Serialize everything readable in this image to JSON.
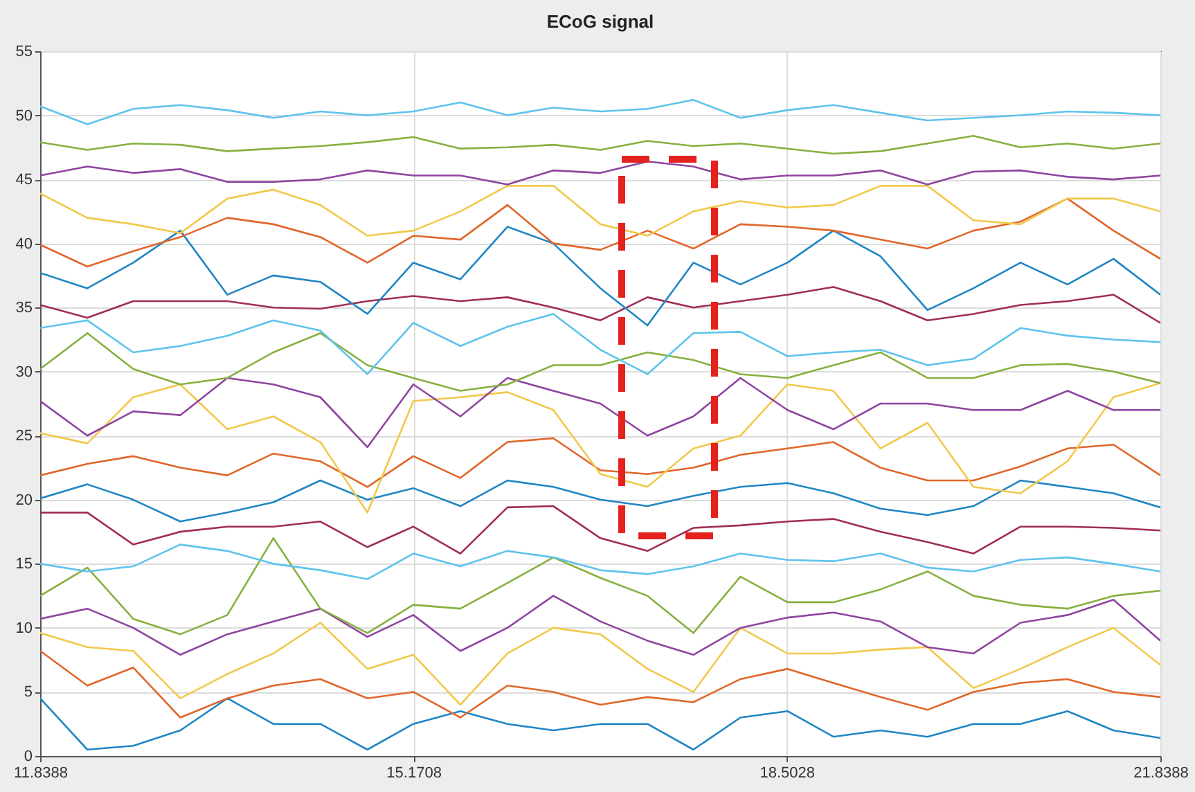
{
  "chart_data": {
    "type": "line",
    "title": "ECoG signal",
    "x": [
      11.8388,
      12.26,
      12.67,
      13.09,
      13.51,
      13.92,
      14.34,
      14.76,
      15.17,
      15.59,
      16.01,
      16.42,
      16.84,
      17.26,
      17.67,
      18.09,
      18.51,
      18.92,
      19.34,
      19.76,
      20.17,
      20.59,
      21.01,
      21.42,
      21.8388
    ],
    "xlim": [
      11.8388,
      21.8388
    ],
    "xticks": [
      11.8388,
      15.1708,
      18.5028,
      21.8388
    ],
    "ylim": [
      0,
      55
    ],
    "yticks": [
      0,
      5,
      10,
      15,
      20,
      25,
      30,
      35,
      40,
      45,
      50,
      55
    ],
    "grid": true,
    "legend": false,
    "series": [
      {
        "color": "#1f86c4",
        "values": [
          4.5,
          0.5,
          0.8,
          2.0,
          4.5,
          2.5,
          2.5,
          0.5,
          2.5,
          3.5,
          2.5,
          2.0,
          2.5,
          2.5,
          0.5,
          3.0,
          3.5,
          1.5,
          2.0,
          1.5,
          2.5,
          2.5,
          3.5,
          2.0,
          1.4
        ]
      },
      {
        "color": "#e0662a",
        "values": [
          8.2,
          5.5,
          6.9,
          3.0,
          4.5,
          5.5,
          6.0,
          4.5,
          5.0,
          3.0,
          5.5,
          5.0,
          4.0,
          4.6,
          4.2,
          6.0,
          6.8,
          5.7,
          4.6,
          3.6,
          5.0,
          5.7,
          6.0,
          5.0,
          4.6
        ]
      },
      {
        "color": "#f2c84b",
        "values": [
          9.6,
          8.5,
          8.2,
          4.5,
          6.4,
          8.0,
          10.4,
          6.8,
          7.9,
          4.0,
          8.0,
          10.0,
          9.5,
          6.8,
          5.0,
          10.0,
          8.0,
          8.0,
          8.3,
          8.5,
          5.3,
          6.8,
          8.5,
          10.0,
          7.1
        ]
      },
      {
        "color": "#8e44a0",
        "values": [
          10.7,
          11.5,
          10.0,
          7.9,
          9.5,
          10.5,
          11.5,
          9.3,
          11.0,
          8.2,
          10.0,
          12.5,
          10.5,
          9.0,
          7.9,
          10.0,
          10.8,
          11.2,
          10.5,
          8.5,
          8.0,
          10.4,
          11.0,
          12.2,
          9.0
        ]
      },
      {
        "color": "#86b03e",
        "values": [
          12.5,
          14.7,
          10.7,
          9.5,
          11.0,
          17.0,
          11.5,
          9.6,
          11.8,
          11.5,
          13.5,
          15.5,
          13.9,
          12.5,
          9.6,
          14.0,
          12.0,
          12.0,
          13.0,
          14.4,
          12.5,
          11.8,
          11.5,
          12.5,
          12.9
        ]
      },
      {
        "color": "#5ec3ec",
        "values": [
          15.0,
          14.4,
          14.8,
          16.5,
          16.0,
          15.0,
          14.5,
          13.8,
          15.8,
          14.8,
          16.0,
          15.5,
          14.5,
          14.2,
          14.8,
          15.8,
          15.3,
          15.2,
          15.8,
          14.7,
          14.4,
          15.3,
          15.5,
          15.0,
          14.4
        ]
      },
      {
        "color": "#a02d52",
        "values": [
          19.0,
          19.0,
          16.5,
          17.5,
          17.9,
          17.9,
          18.3,
          16.3,
          17.9,
          15.8,
          19.4,
          19.5,
          17.0,
          16.0,
          17.8,
          18.0,
          18.3,
          18.5,
          17.5,
          16.7,
          15.8,
          17.9,
          17.9,
          17.8,
          17.6
        ]
      },
      {
        "color": "#1f86c4",
        "values": [
          20.1,
          21.2,
          20.0,
          18.3,
          19.0,
          19.8,
          21.5,
          20.0,
          20.9,
          19.5,
          21.5,
          21.0,
          20.0,
          19.5,
          20.3,
          21.0,
          21.3,
          20.5,
          19.3,
          18.8,
          19.5,
          21.5,
          21.0,
          20.5,
          19.4
        ]
      },
      {
        "color": "#e0662a",
        "values": [
          21.9,
          22.8,
          23.4,
          22.5,
          21.9,
          23.6,
          23.0,
          21.0,
          23.4,
          21.7,
          24.5,
          24.8,
          22.3,
          22.0,
          22.5,
          23.5,
          24.0,
          24.5,
          22.5,
          21.5,
          21.5,
          22.6,
          24.0,
          24.3,
          21.9
        ]
      },
      {
        "color": "#f2c84b",
        "values": [
          25.2,
          24.4,
          28.0,
          29.0,
          25.5,
          26.5,
          24.5,
          19.0,
          27.7,
          28.0,
          28.4,
          27.0,
          22.0,
          21.0,
          24.0,
          25.0,
          29.0,
          28.5,
          24.0,
          26.0,
          21.0,
          20.5,
          23.0,
          28.0,
          29.1
        ]
      },
      {
        "color": "#8e44a0",
        "values": [
          27.7,
          25.0,
          26.9,
          26.6,
          29.5,
          29.0,
          28.0,
          24.1,
          29.0,
          26.5,
          29.5,
          28.5,
          27.5,
          25.0,
          26.5,
          29.5,
          27.0,
          25.5,
          27.5,
          27.5,
          27.0,
          27.0,
          28.5,
          27.0,
          27.0
        ]
      },
      {
        "color": "#86b03e",
        "values": [
          30.2,
          33.0,
          30.2,
          29.0,
          29.5,
          31.5,
          33.0,
          30.5,
          29.5,
          28.5,
          29.0,
          30.5,
          30.5,
          31.5,
          30.9,
          29.8,
          29.5,
          30.5,
          31.5,
          29.5,
          29.5,
          30.5,
          30.6,
          30.0,
          29.1
        ]
      },
      {
        "color": "#5ec3ec",
        "values": [
          33.4,
          34.0,
          31.5,
          32.0,
          32.8,
          34.0,
          33.2,
          29.8,
          33.8,
          32.0,
          33.5,
          34.5,
          31.7,
          29.8,
          33.0,
          33.1,
          31.2,
          31.5,
          31.7,
          30.5,
          31.0,
          33.4,
          32.8,
          32.5,
          32.3
        ]
      },
      {
        "color": "#a02d52",
        "values": [
          35.2,
          34.2,
          35.5,
          35.5,
          35.5,
          35.0,
          34.9,
          35.5,
          35.9,
          35.5,
          35.8,
          35.0,
          34.0,
          35.8,
          35.0,
          35.5,
          36.0,
          36.6,
          35.5,
          34.0,
          34.5,
          35.2,
          35.5,
          36.0,
          33.8
        ]
      },
      {
        "color": "#1f86c4",
        "values": [
          37.7,
          36.5,
          38.5,
          41.0,
          36.0,
          37.5,
          37.0,
          34.5,
          38.5,
          37.2,
          41.3,
          40.0,
          36.5,
          33.6,
          38.5,
          36.8,
          38.5,
          41.0,
          39.0,
          34.8,
          36.5,
          38.5,
          36.8,
          38.8,
          36.0
        ]
      },
      {
        "color": "#e0662a",
        "values": [
          39.9,
          38.2,
          39.4,
          40.5,
          42.0,
          41.5,
          40.5,
          38.5,
          40.6,
          40.3,
          43.0,
          40.0,
          39.5,
          41.0,
          39.6,
          41.5,
          41.3,
          41.0,
          40.3,
          39.6,
          41.0,
          41.7,
          43.5,
          41.0,
          38.8
        ]
      },
      {
        "color": "#f2c84b",
        "values": [
          43.9,
          42.0,
          41.5,
          40.8,
          43.5,
          44.2,
          43.0,
          40.6,
          41.0,
          42.5,
          44.5,
          44.5,
          41.5,
          40.6,
          42.5,
          43.3,
          42.8,
          43.0,
          44.5,
          44.5,
          41.8,
          41.5,
          43.5,
          43.5,
          42.5
        ]
      },
      {
        "color": "#8e44a0",
        "values": [
          45.3,
          46.0,
          45.5,
          45.8,
          44.8,
          44.8,
          45.0,
          45.7,
          45.3,
          45.3,
          44.6,
          45.7,
          45.5,
          46.4,
          46.0,
          45.0,
          45.3,
          45.3,
          45.7,
          44.6,
          45.6,
          45.7,
          45.2,
          45.0,
          45.3
        ]
      },
      {
        "color": "#86b03e",
        "values": [
          47.9,
          47.3,
          47.8,
          47.7,
          47.2,
          47.4,
          47.6,
          47.9,
          48.3,
          47.4,
          47.5,
          47.7,
          47.3,
          48.0,
          47.6,
          47.8,
          47.4,
          47.0,
          47.2,
          47.8,
          48.4,
          47.5,
          47.8,
          47.4,
          47.8
        ]
      },
      {
        "color": "#5ec3ec",
        "values": [
          50.7,
          49.3,
          50.5,
          50.8,
          50.4,
          49.8,
          50.3,
          50.0,
          50.3,
          51.0,
          50.0,
          50.6,
          50.3,
          50.5,
          51.2,
          49.8,
          50.4,
          50.8,
          50.2,
          49.6,
          49.8,
          50.0,
          50.3,
          50.2,
          50.0
        ]
      }
    ]
  }
}
